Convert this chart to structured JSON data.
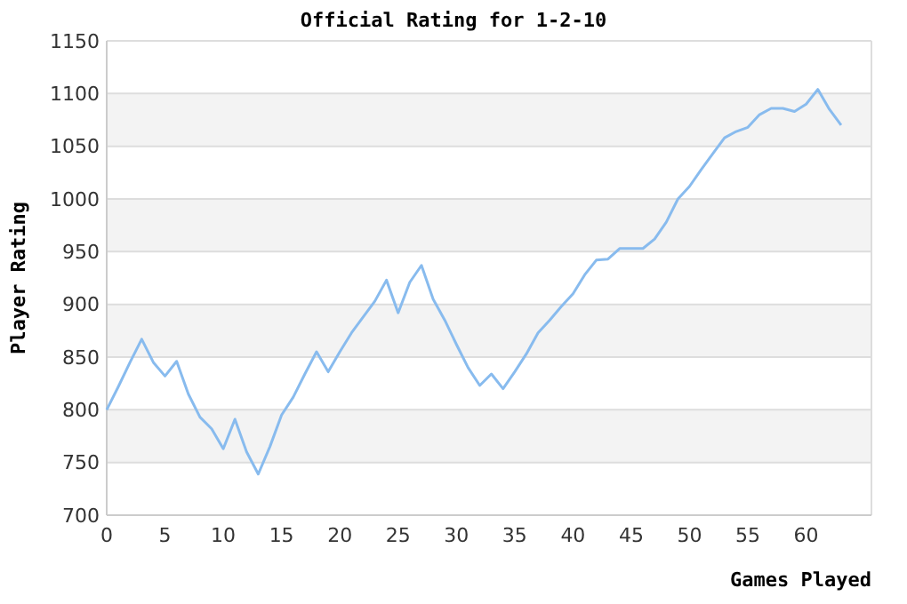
{
  "chart_data": {
    "type": "line",
    "title": "Official Rating for 1-2-10",
    "xlabel": "Games Played",
    "ylabel": "Player Rating",
    "x": [
      0,
      1,
      2,
      3,
      4,
      5,
      6,
      7,
      8,
      9,
      10,
      11,
      12,
      13,
      14,
      15,
      16,
      17,
      18,
      19,
      20,
      21,
      22,
      23,
      24,
      25,
      26,
      27,
      28,
      29,
      30,
      31,
      32,
      33,
      34,
      35,
      36,
      37,
      38,
      39,
      40,
      41,
      42,
      43,
      44,
      45,
      46,
      47,
      48,
      49,
      50,
      51,
      52,
      53,
      54,
      55,
      56,
      57,
      58,
      59,
      60,
      61,
      62,
      63
    ],
    "series": [
      {
        "color": "#88bbee",
        "values": [
          800,
          822,
          845,
          867,
          845,
          832,
          846,
          815,
          793,
          782,
          763,
          791,
          760,
          739,
          765,
          795,
          812,
          834,
          855,
          836,
          855,
          873,
          888,
          903,
          923,
          892,
          921,
          937,
          905,
          885,
          862,
          840,
          823,
          834,
          820,
          836,
          853,
          873,
          885,
          898,
          910,
          928,
          942,
          943,
          953,
          953,
          953,
          962,
          978,
          1000,
          1012,
          1028,
          1043,
          1058,
          1064,
          1068,
          1080,
          1086,
          1086,
          1083,
          1090,
          1104,
          1085,
          1070
        ]
      }
    ],
    "xlim": [
      0,
      65.6
    ],
    "xticks": [
      0,
      5,
      10,
      15,
      20,
      25,
      30,
      35,
      40,
      45,
      50,
      55,
      60
    ],
    "ylim": [
      700,
      1150
    ],
    "yticks": [
      700,
      750,
      800,
      850,
      900,
      950,
      1000,
      1050,
      1100,
      1150
    ],
    "grid": "y",
    "marker": "none",
    "line_style": "solid"
  }
}
